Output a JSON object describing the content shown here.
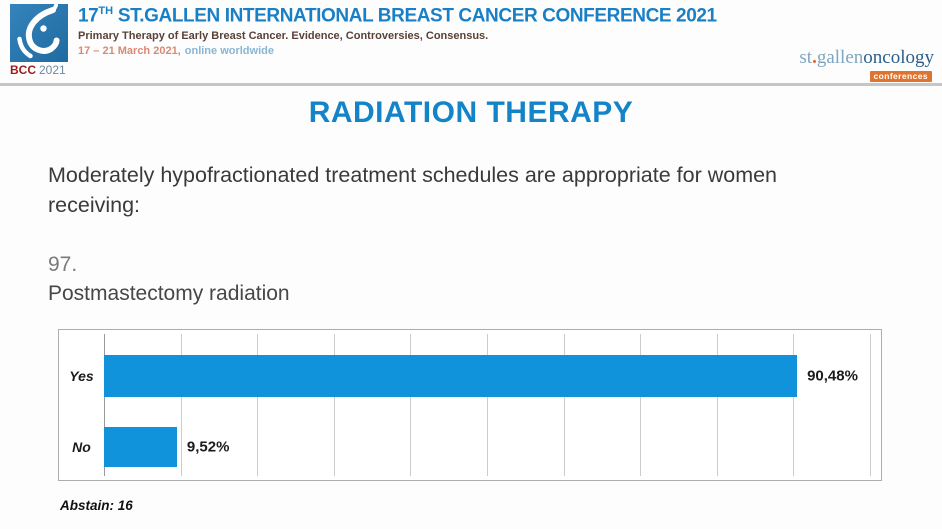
{
  "header": {
    "logo": {
      "bcc": "BCC",
      "year": "2021"
    },
    "title_num": "17",
    "title_sup": "TH",
    "title_rest": " ST.GALLEN INTERNATIONAL BREAST CANCER CONFERENCE 2021",
    "subtitle": "Primary Therapy of Early Breast Cancer. Evidence, Controversies, Consensus.",
    "date_range": "17 – 21 March 2021,",
    "date_mode": "online worldwide",
    "brand": {
      "st": "st",
      "dot": ".",
      "gallen": "gallen",
      "oncology": "oncology",
      "badge": "conferences"
    }
  },
  "main": {
    "section_title": "RADIATION THERAPY",
    "question_intro": "Moderately hypofractionated treatment schedules are appropriate for women receiving:",
    "question_number": "97.",
    "question_label": "Postmastectomy radiation",
    "abstain": "Abstain: 16"
  },
  "chart_data": {
    "type": "bar",
    "orientation": "horizontal",
    "categories": [
      "Yes",
      "No"
    ],
    "values": [
      90.48,
      9.52
    ],
    "value_labels": [
      "90,48%",
      "9,52%"
    ],
    "xlim": [
      0,
      100
    ],
    "gridline_interval": 10,
    "grid": true,
    "legend": false,
    "title": "",
    "xlabel": "",
    "ylabel": "",
    "bar_color": "#1193db"
  },
  "colors": {
    "accent_blue": "#1484c8",
    "header_title_blue": "#1a80c6",
    "bar_blue": "#1193db",
    "subtitle_maroon": "#5a4138",
    "date_salmon": "#d98a76",
    "date_light_blue": "#8ab5d2",
    "brand_light_blue": "#7fa6c0",
    "brand_dark_blue": "#2d5f8a",
    "brand_orange": "#e0732d",
    "bcc_red": "#9b1c1c",
    "logo_blue": "#2b77ae"
  }
}
